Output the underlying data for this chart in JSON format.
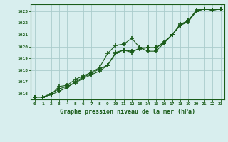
{
  "title": "Graphe pression niveau de la mer (hPa)",
  "bg_color": "#d8eeee",
  "plot_bg_color": "#d8eeee",
  "line_color": "#1a5c1a",
  "grid_color": "#aacccc",
  "xlim": [
    -0.5,
    23.5
  ],
  "ylim": [
    1015.5,
    1023.6
  ],
  "xticks": [
    0,
    1,
    2,
    3,
    4,
    5,
    6,
    7,
    8,
    9,
    10,
    11,
    12,
    13,
    14,
    15,
    16,
    17,
    18,
    19,
    20,
    21,
    22,
    23
  ],
  "yticks": [
    1016,
    1017,
    1018,
    1019,
    1020,
    1021,
    1022,
    1023
  ],
  "series1_x": [
    0,
    1,
    2,
    3,
    4,
    5,
    6,
    7,
    8,
    9,
    10,
    11,
    12,
    13,
    14,
    15,
    16,
    17,
    18,
    19,
    20,
    21,
    22,
    23
  ],
  "series1_y": [
    1015.7,
    1015.7,
    1015.9,
    1016.6,
    1016.7,
    1017.2,
    1017.5,
    1017.8,
    1018.2,
    1019.4,
    1020.1,
    1020.2,
    1020.7,
    1019.9,
    1019.6,
    1019.6,
    1020.3,
    1021.0,
    1021.9,
    1022.2,
    1023.1,
    1023.2,
    1023.1,
    1023.2
  ],
  "series2_x": [
    0,
    1,
    2,
    3,
    4,
    5,
    6,
    7,
    8,
    9,
    10,
    11,
    12,
    13,
    14,
    15,
    16,
    17,
    18,
    19,
    20,
    21,
    22,
    23
  ],
  "series2_y": [
    1015.7,
    1015.7,
    1016.0,
    1016.4,
    1016.6,
    1016.9,
    1017.3,
    1017.6,
    1017.9,
    1018.4,
    1019.4,
    1019.7,
    1019.5,
    1019.9,
    1019.9,
    1019.9,
    1020.4,
    1021.0,
    1021.8,
    1022.1,
    1023.0,
    1023.2,
    1023.1,
    1023.2
  ],
  "series3_x": [
    0,
    1,
    2,
    3,
    4,
    5,
    6,
    7,
    8,
    9,
    10,
    11,
    12,
    13,
    14,
    15,
    16,
    17,
    18,
    19,
    20,
    21,
    22,
    23
  ],
  "series3_y": [
    1015.7,
    1015.7,
    1015.9,
    1016.2,
    1016.5,
    1017.0,
    1017.4,
    1017.7,
    1018.1,
    1018.4,
    1019.5,
    1019.7,
    1019.6,
    1019.8,
    1019.9,
    1019.9,
    1020.3,
    1021.0,
    1021.8,
    1022.2,
    1023.0,
    1023.2,
    1023.1,
    1023.2
  ]
}
